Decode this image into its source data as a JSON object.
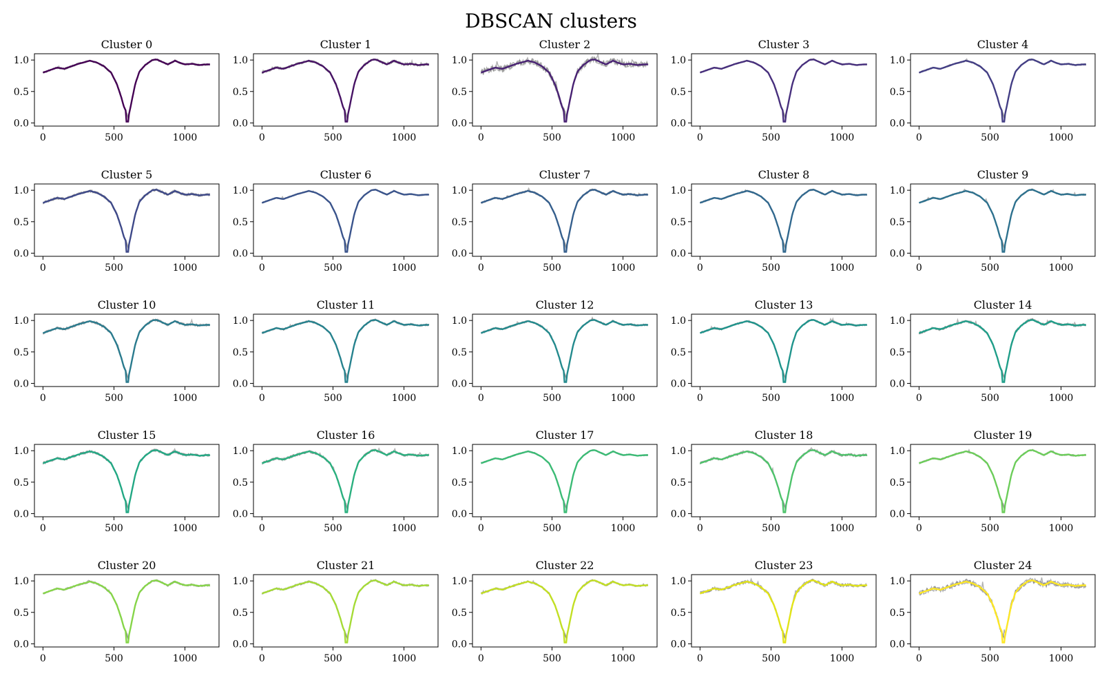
{
  "figure": {
    "title": "DBSCAN clusters"
  },
  "chart_data": {
    "type": "line",
    "title": "DBSCAN clusters",
    "layout": "5x5 grid of subplots",
    "x_range": [
      0,
      1180
    ],
    "y_range": [
      0,
      1.05
    ],
    "x_ticks": [
      0,
      500,
      1000
    ],
    "x_tick_labels": [
      "0",
      "500",
      "1000"
    ],
    "y_ticks": [
      0,
      0.5,
      1
    ],
    "y_tick_labels": [
      "0.0",
      "0.5",
      "1.0"
    ],
    "grid": false,
    "description_values": {
      "profile_x": [
        0,
        50,
        100,
        150,
        200,
        250,
        300,
        330,
        380,
        430,
        480,
        520,
        550,
        570,
        590,
        600,
        610,
        630,
        650,
        680,
        720,
        770,
        800,
        840,
        880,
        930,
        960,
        1000,
        1050,
        1100,
        1150,
        1180
      ],
      "profile_y": [
        0.8,
        0.84,
        0.88,
        0.86,
        0.9,
        0.94,
        0.97,
        0.99,
        0.96,
        0.9,
        0.8,
        0.62,
        0.42,
        0.26,
        0.16,
        0.08,
        0.18,
        0.4,
        0.62,
        0.82,
        0.92,
        1.0,
        1.01,
        0.97,
        0.93,
        0.99,
        0.96,
        0.93,
        0.94,
        0.92,
        0.93,
        0.93
      ]
    },
    "panels": [
      {
        "title": "Cluster 0",
        "color": "#440154",
        "spread": 0.015
      },
      {
        "title": "Cluster 1",
        "color": "#471365",
        "spread": 0.02
      },
      {
        "title": "Cluster 2",
        "color": "#482173",
        "spread": 0.05
      },
      {
        "title": "Cluster 3",
        "color": "#472f7d",
        "spread": 0.01
      },
      {
        "title": "Cluster 4",
        "color": "#433e85",
        "spread": 0.012
      },
      {
        "title": "Cluster 5",
        "color": "#3e4989",
        "spread": 0.02
      },
      {
        "title": "Cluster 6",
        "color": "#3a548c",
        "spread": 0.01
      },
      {
        "title": "Cluster 7",
        "color": "#355f8d",
        "spread": 0.015
      },
      {
        "title": "Cluster 8",
        "color": "#31688e",
        "spread": 0.012
      },
      {
        "title": "Cluster 9",
        "color": "#2d718e",
        "spread": 0.012
      },
      {
        "title": "Cluster 10",
        "color": "#2a7b8e",
        "spread": 0.02
      },
      {
        "title": "Cluster 11",
        "color": "#26828e",
        "spread": 0.015
      },
      {
        "title": "Cluster 12",
        "color": "#238a8d",
        "spread": 0.015
      },
      {
        "title": "Cluster 13",
        "color": "#1f948c",
        "spread": 0.015
      },
      {
        "title": "Cluster 14",
        "color": "#1f9e89",
        "spread": 0.02
      },
      {
        "title": "Cluster 15",
        "color": "#22a884",
        "spread": 0.02
      },
      {
        "title": "Cluster 16",
        "color": "#2ab07f",
        "spread": 0.02
      },
      {
        "title": "Cluster 17",
        "color": "#3bbb75",
        "spread": 0.01
      },
      {
        "title": "Cluster 18",
        "color": "#4ec36b",
        "spread": 0.02
      },
      {
        "title": "Cluster 19",
        "color": "#6ccd5a",
        "spread": 0.012
      },
      {
        "title": "Cluster 20",
        "color": "#86d549",
        "spread": 0.015
      },
      {
        "title": "Cluster 21",
        "color": "#a5db36",
        "spread": 0.015
      },
      {
        "title": "Cluster 22",
        "color": "#c2df23",
        "spread": 0.015
      },
      {
        "title": "Cluster 23",
        "color": "#e2e418",
        "spread": 0.025
      },
      {
        "title": "Cluster 24",
        "color": "#fde725",
        "spread": 0.04
      }
    ]
  }
}
